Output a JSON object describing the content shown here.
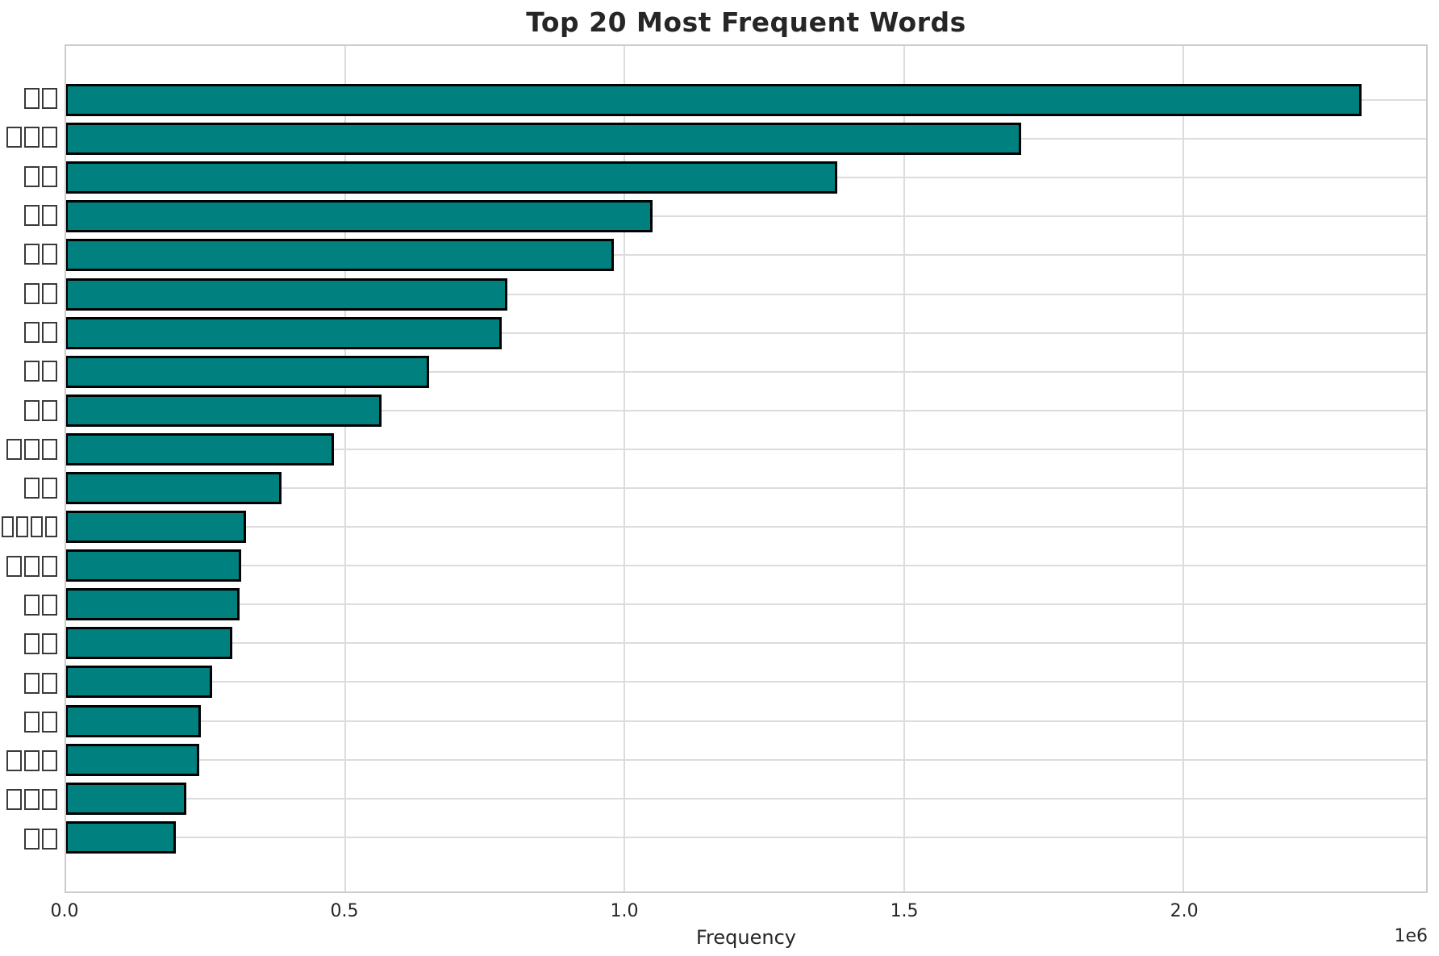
{
  "chart_data": {
    "type": "bar",
    "orientation": "horizontal",
    "title": "Top 20 Most Frequent Words",
    "xlabel": "Frequency",
    "ylabel": "",
    "offset_text": "1e6",
    "categories_note": "y-axis labels appear as missing-glyph (tofu) boxes in the rendered pixels",
    "categories": [
      "□□",
      "□□□",
      "□□",
      "□□",
      "□□",
      "□□",
      "□□",
      "□□",
      "□□",
      "□□□",
      "□□",
      "□□□□",
      "□□□",
      "□□",
      "□□",
      "□□",
      "□□",
      "□□□",
      "□□□",
      "□□"
    ],
    "values": [
      2320000,
      1710000,
      1380000,
      1050000,
      980000,
      790000,
      780000,
      650000,
      565000,
      480000,
      385000,
      322000,
      314000,
      311000,
      298000,
      262000,
      241000,
      239000,
      215000,
      197000
    ],
    "xlim": [
      0,
      2435000
    ],
    "xticks": [
      {
        "value": 0,
        "label": "0.0"
      },
      {
        "value": 500000,
        "label": "0.5"
      },
      {
        "value": 1000000,
        "label": "1.0"
      },
      {
        "value": 1500000,
        "label": "1.5"
      },
      {
        "value": 2000000,
        "label": "2.0"
      }
    ],
    "grid": true,
    "legend_position": "none",
    "colors": {
      "bar_fill": "#00807f",
      "bar_edge": "#000000",
      "grid": "#dcdcdc",
      "spine": "#cccccc",
      "text": "#262626"
    }
  }
}
